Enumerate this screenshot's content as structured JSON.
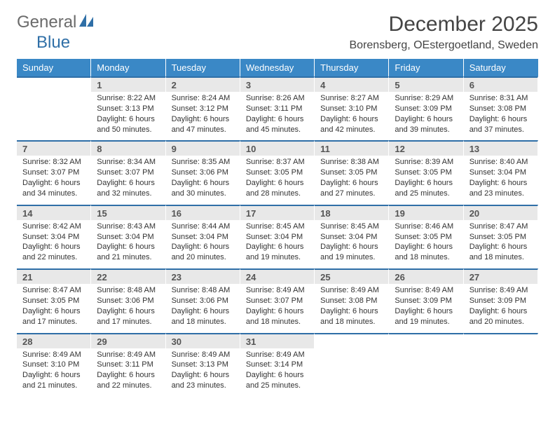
{
  "brand": {
    "part1": "General",
    "part2": "Blue"
  },
  "title": "December 2025",
  "subtitle": "Borensberg, OEstergoetland, Sweden",
  "colors": {
    "header_bg": "#3a88c6",
    "header_text": "#ffffff",
    "daynum_bg": "#e8e8e8",
    "border_accent": "#2f6fa7",
    "text": "#333333",
    "logo_gray": "#6b6b6b",
    "logo_blue": "#2f6fa7"
  },
  "dayNames": [
    "Sunday",
    "Monday",
    "Tuesday",
    "Wednesday",
    "Thursday",
    "Friday",
    "Saturday"
  ],
  "weeks": [
    [
      null,
      {
        "n": "1",
        "sr": "8:22 AM",
        "ss": "3:13 PM",
        "dl": "6 hours and 50 minutes."
      },
      {
        "n": "2",
        "sr": "8:24 AM",
        "ss": "3:12 PM",
        "dl": "6 hours and 47 minutes."
      },
      {
        "n": "3",
        "sr": "8:26 AM",
        "ss": "3:11 PM",
        "dl": "6 hours and 45 minutes."
      },
      {
        "n": "4",
        "sr": "8:27 AM",
        "ss": "3:10 PM",
        "dl": "6 hours and 42 minutes."
      },
      {
        "n": "5",
        "sr": "8:29 AM",
        "ss": "3:09 PM",
        "dl": "6 hours and 39 minutes."
      },
      {
        "n": "6",
        "sr": "8:31 AM",
        "ss": "3:08 PM",
        "dl": "6 hours and 37 minutes."
      }
    ],
    [
      {
        "n": "7",
        "sr": "8:32 AM",
        "ss": "3:07 PM",
        "dl": "6 hours and 34 minutes."
      },
      {
        "n": "8",
        "sr": "8:34 AM",
        "ss": "3:07 PM",
        "dl": "6 hours and 32 minutes."
      },
      {
        "n": "9",
        "sr": "8:35 AM",
        "ss": "3:06 PM",
        "dl": "6 hours and 30 minutes."
      },
      {
        "n": "10",
        "sr": "8:37 AM",
        "ss": "3:05 PM",
        "dl": "6 hours and 28 minutes."
      },
      {
        "n": "11",
        "sr": "8:38 AM",
        "ss": "3:05 PM",
        "dl": "6 hours and 27 minutes."
      },
      {
        "n": "12",
        "sr": "8:39 AM",
        "ss": "3:05 PM",
        "dl": "6 hours and 25 minutes."
      },
      {
        "n": "13",
        "sr": "8:40 AM",
        "ss": "3:04 PM",
        "dl": "6 hours and 23 minutes."
      }
    ],
    [
      {
        "n": "14",
        "sr": "8:42 AM",
        "ss": "3:04 PM",
        "dl": "6 hours and 22 minutes."
      },
      {
        "n": "15",
        "sr": "8:43 AM",
        "ss": "3:04 PM",
        "dl": "6 hours and 21 minutes."
      },
      {
        "n": "16",
        "sr": "8:44 AM",
        "ss": "3:04 PM",
        "dl": "6 hours and 20 minutes."
      },
      {
        "n": "17",
        "sr": "8:45 AM",
        "ss": "3:04 PM",
        "dl": "6 hours and 19 minutes."
      },
      {
        "n": "18",
        "sr": "8:45 AM",
        "ss": "3:04 PM",
        "dl": "6 hours and 19 minutes."
      },
      {
        "n": "19",
        "sr": "8:46 AM",
        "ss": "3:05 PM",
        "dl": "6 hours and 18 minutes."
      },
      {
        "n": "20",
        "sr": "8:47 AM",
        "ss": "3:05 PM",
        "dl": "6 hours and 18 minutes."
      }
    ],
    [
      {
        "n": "21",
        "sr": "8:47 AM",
        "ss": "3:05 PM",
        "dl": "6 hours and 17 minutes."
      },
      {
        "n": "22",
        "sr": "8:48 AM",
        "ss": "3:06 PM",
        "dl": "6 hours and 17 minutes."
      },
      {
        "n": "23",
        "sr": "8:48 AM",
        "ss": "3:06 PM",
        "dl": "6 hours and 18 minutes."
      },
      {
        "n": "24",
        "sr": "8:49 AM",
        "ss": "3:07 PM",
        "dl": "6 hours and 18 minutes."
      },
      {
        "n": "25",
        "sr": "8:49 AM",
        "ss": "3:08 PM",
        "dl": "6 hours and 18 minutes."
      },
      {
        "n": "26",
        "sr": "8:49 AM",
        "ss": "3:09 PM",
        "dl": "6 hours and 19 minutes."
      },
      {
        "n": "27",
        "sr": "8:49 AM",
        "ss": "3:09 PM",
        "dl": "6 hours and 20 minutes."
      }
    ],
    [
      {
        "n": "28",
        "sr": "8:49 AM",
        "ss": "3:10 PM",
        "dl": "6 hours and 21 minutes."
      },
      {
        "n": "29",
        "sr": "8:49 AM",
        "ss": "3:11 PM",
        "dl": "6 hours and 22 minutes."
      },
      {
        "n": "30",
        "sr": "8:49 AM",
        "ss": "3:13 PM",
        "dl": "6 hours and 23 minutes."
      },
      {
        "n": "31",
        "sr": "8:49 AM",
        "ss": "3:14 PM",
        "dl": "6 hours and 25 minutes."
      },
      null,
      null,
      null
    ]
  ],
  "labels": {
    "sunrise": "Sunrise:",
    "sunset": "Sunset:",
    "daylight": "Daylight:"
  }
}
